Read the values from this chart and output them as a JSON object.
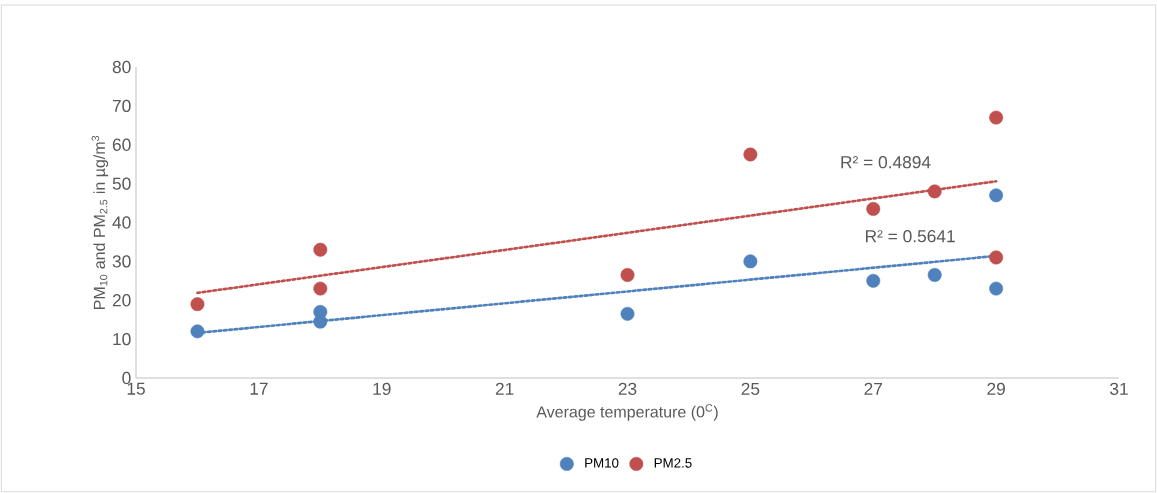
{
  "chart_data": {
    "type": "scatter",
    "xlabel": "Average temperature (0$^{C}$)",
    "ylabel": "PM$_{10}$ and PM$_{2.5}$ in µg/m$^{3}$",
    "series": [
      {
        "name": "PM10",
        "marker": "circle",
        "color": "#4f81bd",
        "x": [
          16,
          18,
          18,
          23,
          25,
          27,
          28,
          29,
          29
        ],
        "values": [
          12,
          17,
          14.5,
          16.5,
          30,
          25,
          26.5,
          47,
          23
        ]
      },
      {
        "name": "PM2.5",
        "marker": "circle",
        "color": "#c0504d",
        "x": [
          16,
          18,
          18,
          23,
          25,
          27,
          28,
          29,
          29
        ],
        "values": [
          19,
          33,
          23,
          26.5,
          57.5,
          43.5,
          48,
          67,
          31
        ]
      },
      {
        "type": "line",
        "marker": "none",
        "color": "#4f81bd",
        "line_style": "dotted",
        "x": [
          16,
          29
        ],
        "values": [
          11.6,
          31.4
        ]
      },
      {
        "type": "line",
        "marker": "none",
        "color": "#c0504d",
        "line_style": "dotted",
        "x": [
          16,
          29
        ],
        "values": [
          21.9,
          50.6
        ]
      }
    ],
    "annotations": [
      "R² = 0.4894",
      "R² = 0.5641"
    ],
    "xlim": [
      15,
      31
    ],
    "xticks": [
      15,
      17,
      19,
      21,
      23,
      25,
      27,
      29,
      31
    ],
    "ylim": [
      0,
      80
    ],
    "yticks": [
      0,
      10,
      20,
      30,
      40,
      50,
      60,
      70,
      80
    ],
    "legend": "bottom"
  }
}
